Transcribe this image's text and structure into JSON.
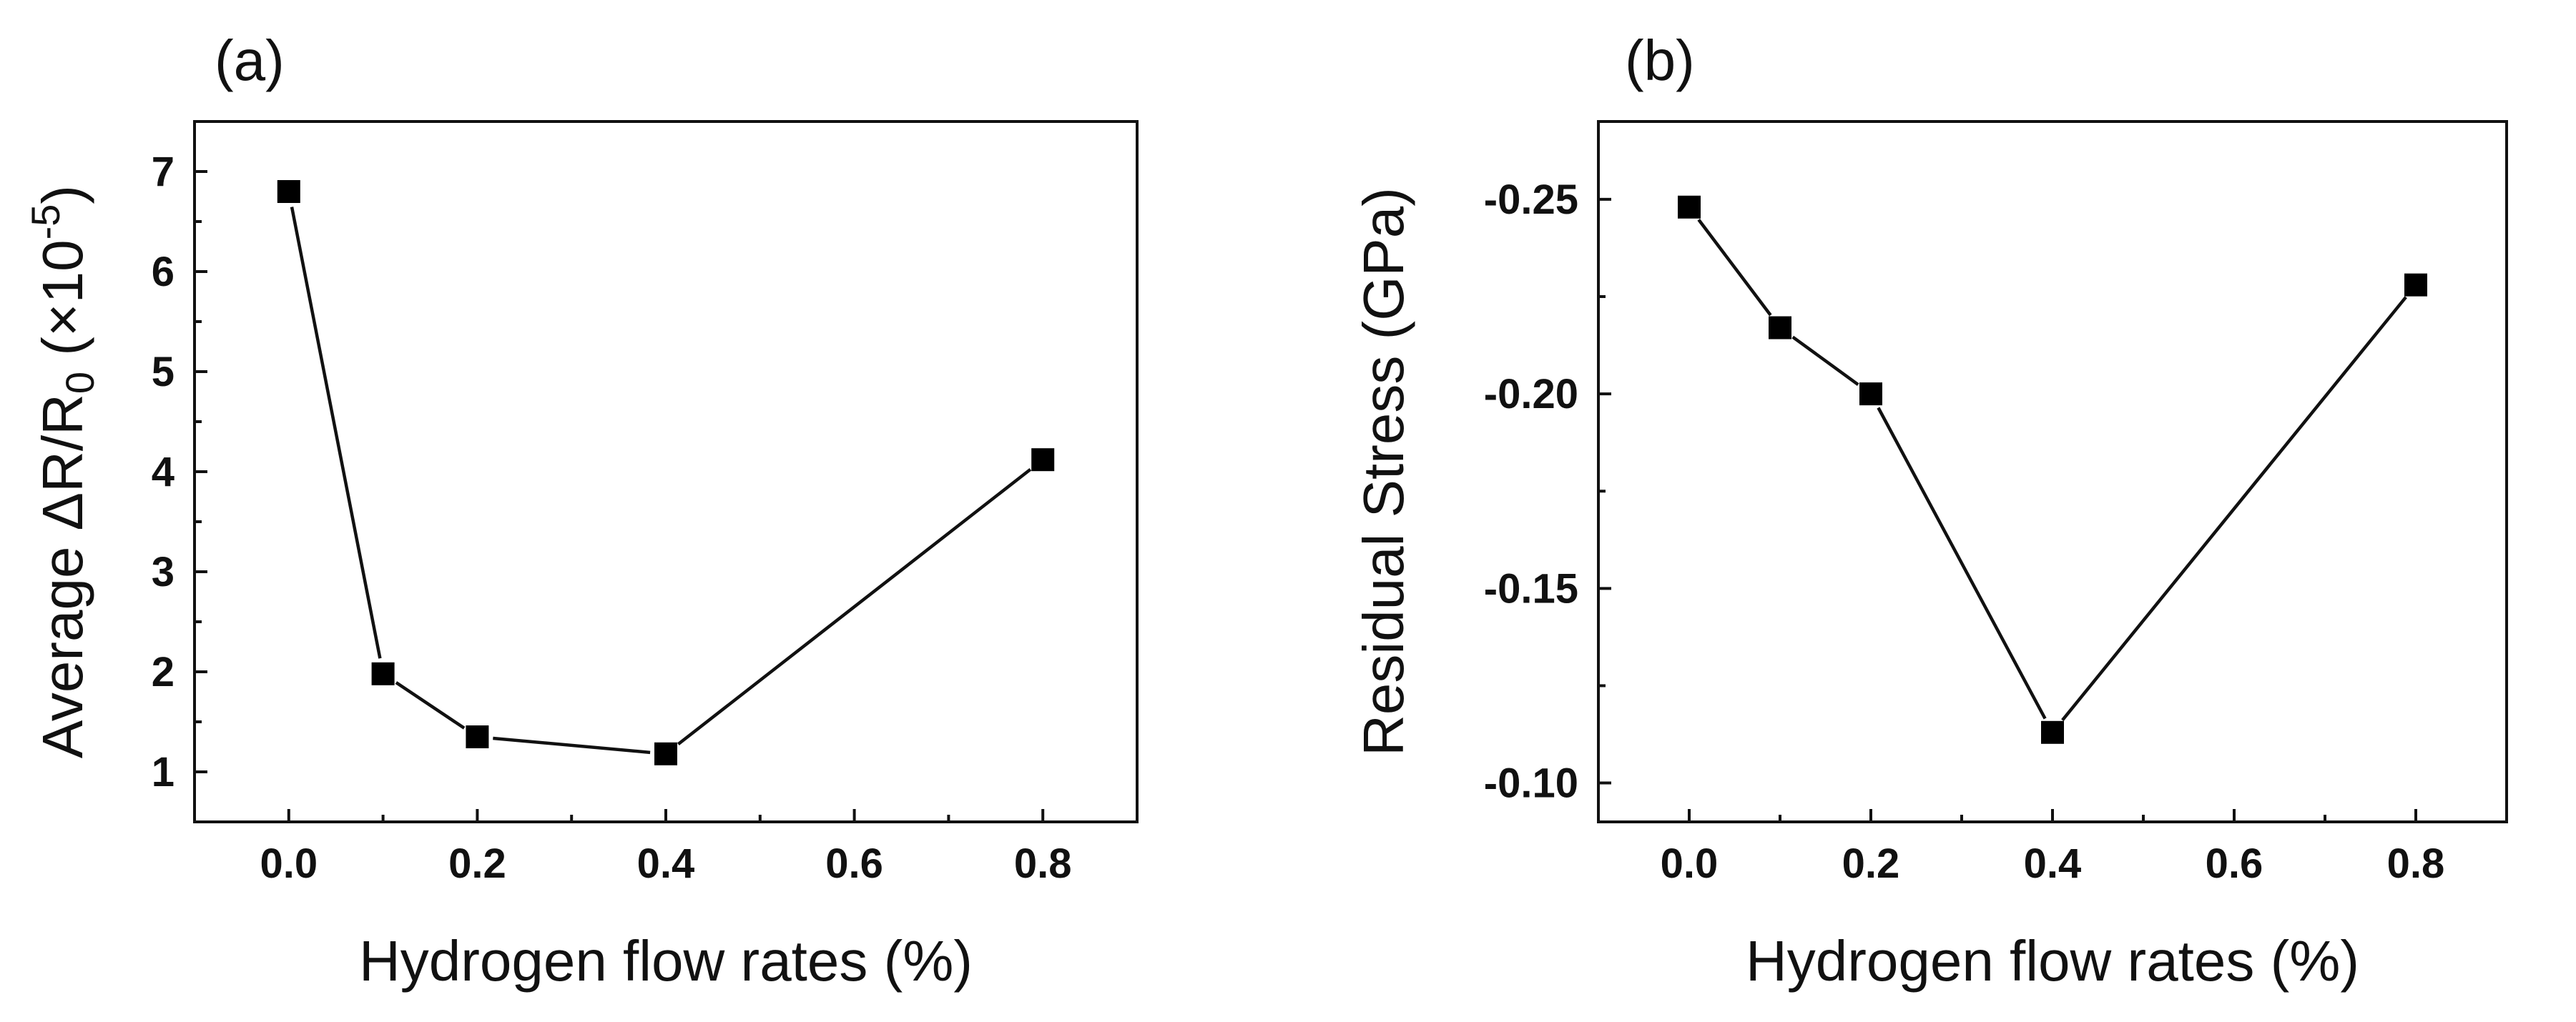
{
  "chart_data": [
    {
      "type": "line",
      "panel_label": "(a)",
      "xlabel": "Hydrogen flow rates (%)",
      "ylabel": "Average ΔR/R",
      "ylabel_subscript": "0",
      "ylabel_suffix": " (×10",
      "ylabel_superscript": "-5",
      "ylabel_close": ")",
      "xlim": [
        -0.1,
        0.9
      ],
      "ylim": [
        0.5,
        7.5
      ],
      "x_ticks": [
        0.0,
        0.2,
        0.4,
        0.6,
        0.8
      ],
      "x_tick_labels": [
        "0.0",
        "0.2",
        "0.4",
        "0.6",
        "0.8"
      ],
      "y_ticks": [
        1,
        2,
        3,
        4,
        5,
        6,
        7
      ],
      "y_tick_labels": [
        "1",
        "2",
        "3",
        "4",
        "5",
        "6",
        "7"
      ],
      "y_reversed": false,
      "marker": "square",
      "color": "#000000",
      "x": [
        0.0,
        0.1,
        0.2,
        0.4,
        0.8
      ],
      "y": [
        6.8,
        1.98,
        1.35,
        1.18,
        4.12
      ]
    },
    {
      "type": "line",
      "panel_label": "(b)",
      "xlabel": "Hydrogen flow rates (%)",
      "ylabel": "Residual Stress (GPa)",
      "xlim": [
        -0.1,
        0.9
      ],
      "ylim": [
        -0.09,
        -0.27
      ],
      "x_ticks": [
        0.0,
        0.2,
        0.4,
        0.6,
        0.8
      ],
      "x_tick_labels": [
        "0.0",
        "0.2",
        "0.4",
        "0.6",
        "0.8"
      ],
      "y_ticks": [
        -0.25,
        -0.2,
        -0.15,
        -0.1
      ],
      "y_tick_labels": [
        "-0.25",
        "-0.20",
        "-0.15",
        "-0.10"
      ],
      "y_reversed": true,
      "marker": "square",
      "color": "#000000",
      "x": [
        0.0,
        0.1,
        0.2,
        0.4,
        0.8
      ],
      "y": [
        -0.248,
        -0.217,
        -0.2,
        -0.113,
        -0.228
      ]
    }
  ]
}
